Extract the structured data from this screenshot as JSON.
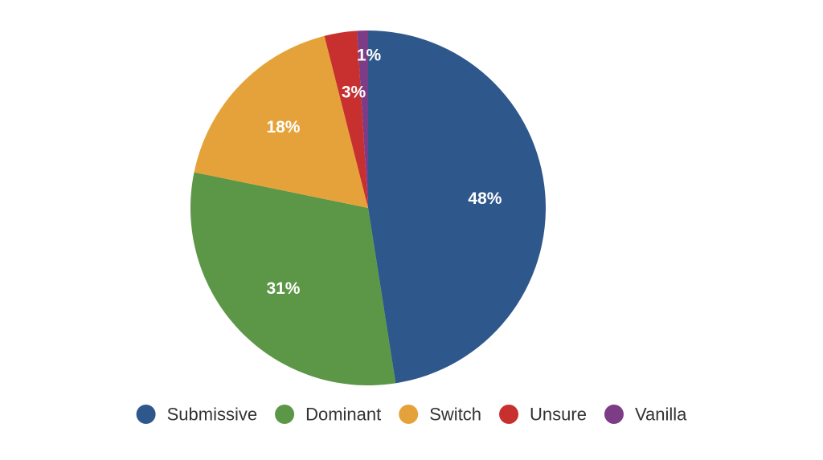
{
  "chart_data": {
    "type": "pie",
    "title": "",
    "categories": [
      "Submissive",
      "Dominant",
      "Switch",
      "Unsure",
      "Vanilla"
    ],
    "values": [
      48,
      31,
      18,
      3,
      1
    ],
    "data_labels": [
      "48%",
      "31%",
      "18%",
      "3%",
      "1%"
    ],
    "colors": [
      "#2e578b",
      "#5c9647",
      "#e6a23a",
      "#c8302f",
      "#7c3c86"
    ],
    "label_color": "#ffffff",
    "legend": {
      "position": "bottom",
      "items": [
        "Submissive",
        "Dominant",
        "Switch",
        "Unsure",
        "Vanilla"
      ]
    }
  }
}
